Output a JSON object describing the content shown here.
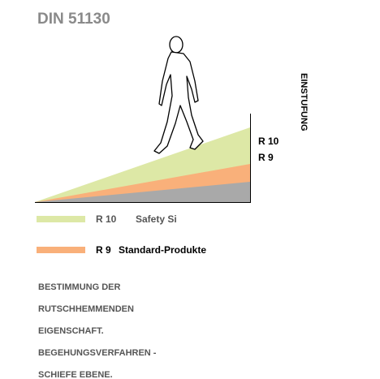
{
  "header": {
    "title": "DIN 51130"
  },
  "diagram": {
    "axis_label": "EINSTUFUNG",
    "levels": [
      "R 10",
      "R 9"
    ]
  },
  "legend": [
    {
      "code": "R 10",
      "text": "Safety Si"
    },
    {
      "code": "R 9",
      "text": "Standard-Produkte"
    }
  ],
  "description": [
    "BESTIMMUNG DER",
    "RUTSCHHEMMENDEN",
    "EIGENSCHAFT.",
    "BEGEHUNGSVERFAHREN -",
    "SCHIEFE EBENE."
  ]
}
